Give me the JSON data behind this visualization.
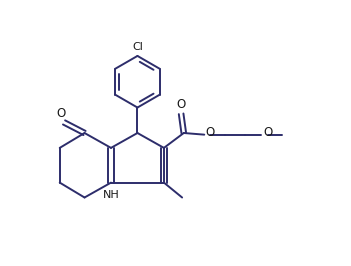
{
  "background_color": "#ffffff",
  "line_color": "#2d2d6b",
  "line_width": 1.4,
  "figsize": [
    3.51,
    2.66
  ],
  "dpi": 100,
  "xlim": [
    0.0,
    9.0
  ],
  "ylim": [
    1.5,
    9.5
  ]
}
